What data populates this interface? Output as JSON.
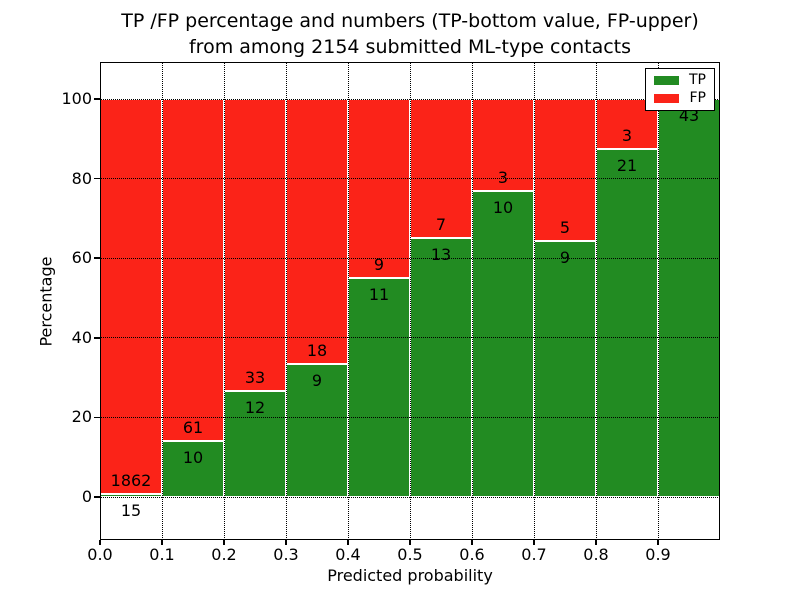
{
  "chart_data": {
    "type": "bar",
    "stacked": true,
    "title_line1": "TP /FP percentage and numbers (TP-bottom value, FP-upper)",
    "title_line2": "from among 2154 submitted ML-type contacts",
    "xlabel": "Predicted probability",
    "ylabel": "Percentage",
    "total_submitted": 2154,
    "x_tick_labels": [
      "0.0",
      "0.1",
      "0.2",
      "0.3",
      "0.4",
      "0.5",
      "0.6",
      "0.7",
      "0.8",
      "0.9"
    ],
    "y_ticks": [
      0,
      20,
      40,
      60,
      80,
      100
    ],
    "xlim": [
      0.0,
      1.0
    ],
    "ylim": [
      -10.8,
      109.3
    ],
    "grid": true,
    "grid_style": "dotted",
    "bin_width": 0.1,
    "categories": [
      "0.0-0.1",
      "0.1-0.2",
      "0.2-0.3",
      "0.3-0.4",
      "0.4-0.5",
      "0.5-0.6",
      "0.6-0.7",
      "0.7-0.8",
      "0.8-0.9",
      "0.9-1.0"
    ],
    "series": [
      {
        "name": "TP",
        "counts": [
          15,
          10,
          12,
          9,
          11,
          13,
          10,
          9,
          21,
          43
        ]
      },
      {
        "name": "FP",
        "counts": [
          1862,
          61,
          33,
          18,
          9,
          7,
          3,
          5,
          3,
          0
        ]
      }
    ],
    "tp_percent": [
      0.8,
      14.1,
      26.7,
      33.3,
      55.0,
      65.0,
      76.9,
      64.3,
      87.5,
      100.0
    ],
    "colors": {
      "tp": "#228b22",
      "fp": "#fb2318",
      "bar_edge": "#ffffff",
      "grid": "#000000",
      "text": "#000000",
      "frame": "#000000",
      "background": "#ffffff"
    },
    "legend": {
      "position": "upper-right",
      "entries": [
        {
          "label": "TP",
          "color": "#228b22"
        },
        {
          "label": "FP",
          "color": "#fb2318"
        }
      ]
    }
  }
}
